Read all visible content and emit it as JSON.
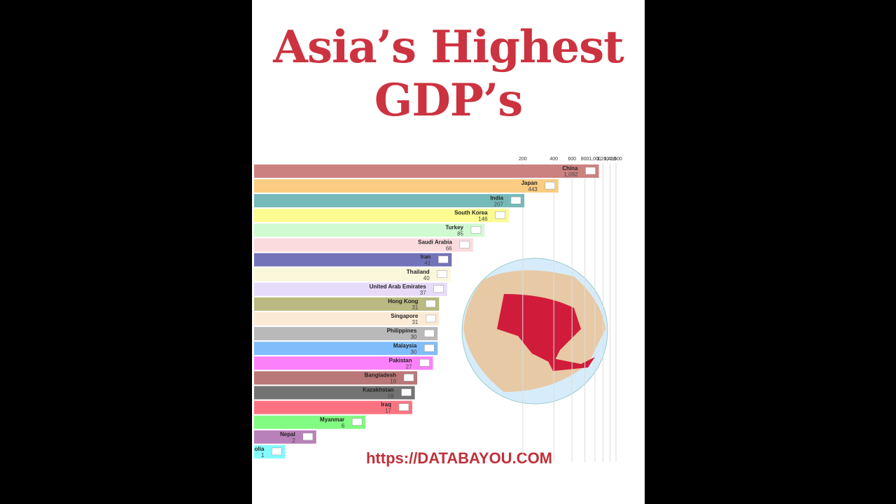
{
  "chart_data": {
    "type": "bar",
    "orientation": "horizontal",
    "title": "Asia’s Highest GDP’s",
    "footer": "https://DATABAYOU.COM",
    "categories": [
      "China",
      "Japan",
      "India",
      "South Korea",
      "Turkey",
      "Saudi Arabia",
      "Iran",
      "Thailand",
      "United Arab Emirates",
      "Hong Kong",
      "Singapore",
      "Philippines",
      "Malaysia",
      "Pakistan",
      "Bangladesh",
      "Kazakhstan",
      "Iraq",
      "Myanmar",
      "Nepal",
      "Mongolia"
    ],
    "values": [
      1092,
      443,
      207,
      146,
      85,
      66,
      41,
      40,
      37,
      31,
      31,
      30,
      30,
      27,
      19,
      18,
      17,
      6,
      2,
      1
    ],
    "value_labels": [
      "1,092",
      "443",
      "207",
      "146",
      "85",
      "66",
      "41",
      "40",
      "37",
      "31",
      "31",
      "30",
      "30",
      "27",
      "19",
      "18",
      "17",
      "6",
      "2",
      "1"
    ],
    "colors": [
      "#c97a7a",
      "#fbc97a",
      "#6fb5b5",
      "#fbfb8a",
      "#cdfbd0",
      "#fbd9dc",
      "#6b6bb5",
      "#fbf7d9",
      "#e6d9fb",
      "#b5b57a",
      "#fbe9d3",
      "#b5b5b5",
      "#7ab9fb",
      "#fb7afb",
      "#b57070",
      "#6b6b6b",
      "#fb6b7a",
      "#7afb7a",
      "#b57ab5",
      "#7afbfb"
    ],
    "xscale": "log",
    "xlim": [
      0.5,
      1600
    ],
    "xticks": [
      200,
      400,
      600,
      800,
      {
        "value": 1000,
        "label": "1,000"
      },
      {
        "value": 1200,
        "label": "1,200"
      },
      {
        "value": 1400,
        "label": "1,400"
      },
      {
        "value": 1600,
        "label": "1,600"
      }
    ],
    "grid": true
  }
}
